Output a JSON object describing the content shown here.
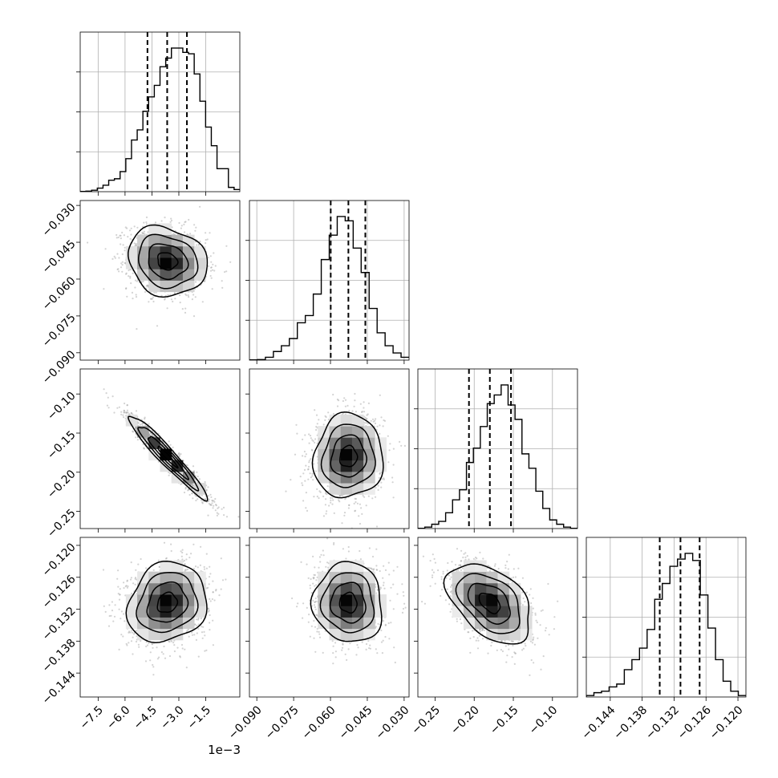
{
  "chart_data": {
    "type": "corner",
    "parameters": [
      {
        "range": [
          -0.0085,
          0.0004
        ],
        "ticks": [
          "-7.5",
          "-6.0",
          "-4.5",
          "-3.0",
          "-1.5"
        ],
        "tick_values": [
          -0.0075,
          -0.006,
          -0.0045,
          -0.003,
          -0.0015
        ],
        "offset_label": "1e−3",
        "quantiles": [
          -0.00475,
          -0.00365,
          -0.00255
        ],
        "hist": [
          0.002,
          0.004,
          0.01,
          0.025,
          0.045,
          0.08,
          0.09,
          0.14,
          0.23,
          0.36,
          0.43,
          0.56,
          0.66,
          0.74,
          0.87,
          0.93,
          1.0,
          1.0,
          0.97,
          0.96,
          0.82,
          0.63,
          0.45,
          0.32,
          0.16,
          0.16,
          0.03,
          0.015
        ]
      },
      {
        "range": [
          -0.093,
          -0.028
        ],
        "ticks": [
          "-0.090",
          "-0.075",
          "-0.060",
          "-0.045",
          "-0.030"
        ],
        "tick_values": [
          -0.09,
          -0.075,
          -0.06,
          -0.045,
          -0.03
        ],
        "quantiles": [
          -0.0599,
          -0.0527,
          -0.0458
        ],
        "hist": [
          0.002,
          0.004,
          0.02,
          0.06,
          0.1,
          0.15,
          0.26,
          0.31,
          0.46,
          0.7,
          0.87,
          1.0,
          0.97,
          0.78,
          0.61,
          0.36,
          0.19,
          0.1,
          0.05,
          0.02
        ]
      },
      {
        "range": [
          -0.272,
          -0.068
        ],
        "ticks": [
          "-0.25",
          "-0.20",
          "-0.15",
          "-0.10"
        ],
        "tick_values": [
          -0.25,
          -0.2,
          -0.15,
          -0.1
        ],
        "quantiles": [
          -0.2067,
          -0.18,
          -0.153
        ],
        "hist": [
          0.002,
          0.01,
          0.03,
          0.05,
          0.11,
          0.2,
          0.27,
          0.46,
          0.56,
          0.71,
          0.87,
          0.93,
          1.0,
          0.86,
          0.76,
          0.52,
          0.42,
          0.26,
          0.14,
          0.06,
          0.03,
          0.01,
          0.002
        ]
      },
      {
        "range": [
          -0.1485,
          -0.1185
        ],
        "ticks": [
          "-0.144",
          "-0.138",
          "-0.132",
          "-0.126",
          "-0.120"
        ],
        "tick_values": [
          -0.144,
          -0.138,
          -0.132,
          -0.126,
          -0.12
        ],
        "quantiles": [
          -0.1347,
          -0.1308,
          -0.1272
        ],
        "hist": [
          0.01,
          0.03,
          0.04,
          0.07,
          0.09,
          0.19,
          0.26,
          0.34,
          0.47,
          0.68,
          0.79,
          0.91,
          0.96,
          1.0,
          0.95,
          0.71,
          0.48,
          0.26,
          0.11,
          0.04,
          0.01
        ]
      }
    ],
    "correlations": {
      "1-0": -0.15,
      "2-0": -0.96,
      "2-1": 0.05,
      "3-0": 0.15,
      "3-1": -0.05,
      "3-2": -0.45
    },
    "contour_levels": 4,
    "gridlines": true,
    "histogram_line_color": "#000000",
    "quantile_line_style": "dashed",
    "point_color": "#9e9e9e",
    "density_colormap": [
      "#ffffff",
      "#000000"
    ]
  }
}
